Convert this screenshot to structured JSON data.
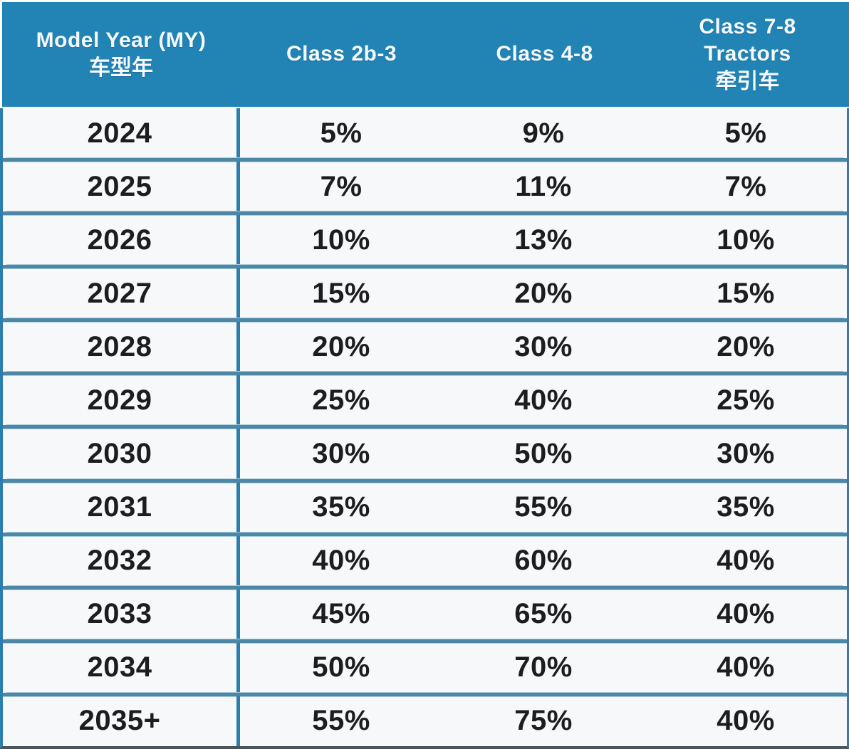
{
  "colors": {
    "header_bg": "#2283b5",
    "header_text": "#f4fafd",
    "row_bg": "#f7f8f9",
    "cell_text": "#1d1d1f",
    "divider": "#4e86a6",
    "divider_edge": "#a9cddd",
    "col_border": "#2d7dad",
    "bottom_border": "#49555c",
    "page_bg": "#ffffff"
  },
  "table": {
    "headers": [
      {
        "lines": [
          "Model Year (MY)",
          "车型年"
        ]
      },
      {
        "lines": [
          "Class 2b-3"
        ]
      },
      {
        "lines": [
          "Class 4-8"
        ]
      },
      {
        "lines": [
          "Class 7-8",
          "Tractors",
          "牵引车"
        ]
      }
    ],
    "rows": [
      [
        "2024",
        "5%",
        "9%",
        "5%"
      ],
      [
        "2025",
        "7%",
        "11%",
        "7%"
      ],
      [
        "2026",
        "10%",
        "13%",
        "10%"
      ],
      [
        "2027",
        "15%",
        "20%",
        "15%"
      ],
      [
        "2028",
        "20%",
        "30%",
        "20%"
      ],
      [
        "2029",
        "25%",
        "40%",
        "25%"
      ],
      [
        "2030",
        "30%",
        "50%",
        "30%"
      ],
      [
        "2031",
        "35%",
        "55%",
        "35%"
      ],
      [
        "2032",
        "40%",
        "60%",
        "40%"
      ],
      [
        "2033",
        "45%",
        "65%",
        "40%"
      ],
      [
        "2034",
        "50%",
        "70%",
        "40%"
      ],
      [
        "2035+",
        "55%",
        "75%",
        "40%"
      ]
    ]
  },
  "chart_data": {
    "type": "table",
    "title": "",
    "columns": [
      "Model Year (MY) 车型年",
      "Class 2b-3",
      "Class 4-8",
      "Class 7-8 Tractors 牵引车"
    ],
    "rows": [
      [
        "2024",
        "5%",
        "9%",
        "5%"
      ],
      [
        "2025",
        "7%",
        "11%",
        "7%"
      ],
      [
        "2026",
        "10%",
        "13%",
        "10%"
      ],
      [
        "2027",
        "15%",
        "20%",
        "15%"
      ],
      [
        "2028",
        "20%",
        "30%",
        "20%"
      ],
      [
        "2029",
        "25%",
        "40%",
        "25%"
      ],
      [
        "2030",
        "30%",
        "50%",
        "30%"
      ],
      [
        "2031",
        "35%",
        "55%",
        "35%"
      ],
      [
        "2032",
        "40%",
        "60%",
        "40%"
      ],
      [
        "2033",
        "45%",
        "65%",
        "40%"
      ],
      [
        "2034",
        "50%",
        "70%",
        "40%"
      ],
      [
        "2035+",
        "55%",
        "75%",
        "40%"
      ]
    ],
    "series": [
      {
        "name": "Class 2b-3",
        "values": [
          5,
          7,
          10,
          15,
          20,
          25,
          30,
          35,
          40,
          45,
          50,
          55
        ]
      },
      {
        "name": "Class 4-8",
        "values": [
          9,
          11,
          13,
          20,
          30,
          40,
          50,
          55,
          60,
          65,
          70,
          75
        ]
      },
      {
        "name": "Class 7-8 Tractors",
        "values": [
          5,
          7,
          10,
          15,
          20,
          25,
          30,
          35,
          40,
          40,
          40,
          40
        ]
      }
    ],
    "categories": [
      "2024",
      "2025",
      "2026",
      "2027",
      "2028",
      "2029",
      "2030",
      "2031",
      "2032",
      "2033",
      "2034",
      "2035+"
    ],
    "value_unit": "%"
  }
}
